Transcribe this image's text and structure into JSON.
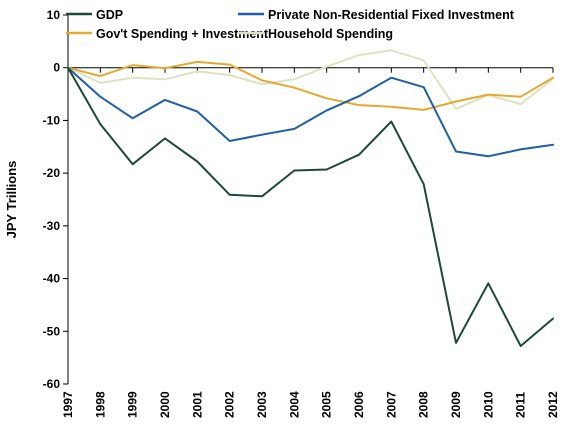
{
  "chart_data": {
    "type": "line",
    "title": "",
    "xlabel": "",
    "ylabel": "JPY Trillions",
    "categories": [
      "1997",
      "1998",
      "1999",
      "2000",
      "2001",
      "2002",
      "2003",
      "2004",
      "2005",
      "2006",
      "2007",
      "2008",
      "2009",
      "2010",
      "2011",
      "2012"
    ],
    "ylim": [
      -60,
      10
    ],
    "yticks": [
      10,
      0,
      -10,
      -20,
      -30,
      -40,
      -50,
      -60
    ],
    "grid": false,
    "legend_position": "top",
    "series": [
      {
        "name": "GDP",
        "color": "#1d4a36",
        "values": [
          0,
          -10.7,
          -18.3,
          -13.4,
          -17.8,
          -24.1,
          -24.4,
          -19.5,
          -19.3,
          -16.5,
          -10.2,
          -22.1,
          -52.2,
          -40.9,
          -52.8,
          -47.6
        ]
      },
      {
        "name": "Private Non-Residential Fixed Investment",
        "color": "#1f5fa3",
        "values": [
          0,
          -5.5,
          -9.6,
          -6.1,
          -8.3,
          -13.9,
          -12.7,
          -11.6,
          -8.1,
          -5.4,
          -1.9,
          -3.7,
          -15.9,
          -16.8,
          -15.5,
          -14.6
        ]
      },
      {
        "name": "Gov't Spending + Investment",
        "color": "#e4a92e",
        "values": [
          0,
          -1.6,
          0.5,
          -0.1,
          1.1,
          0.6,
          -2.4,
          -3.8,
          -5.8,
          -7.1,
          -7.4,
          -8.0,
          -6.4,
          -5.1,
          -5.5,
          -1.9
        ]
      },
      {
        "name": "Household Spending",
        "color": "#dde3c0",
        "values": [
          0,
          -2.9,
          -1.9,
          -2.2,
          -0.7,
          -1.4,
          -3.1,
          -2.2,
          0.2,
          2.4,
          3.3,
          1.4,
          -7.8,
          -5.2,
          -6.9,
          -2.1
        ]
      }
    ]
  }
}
